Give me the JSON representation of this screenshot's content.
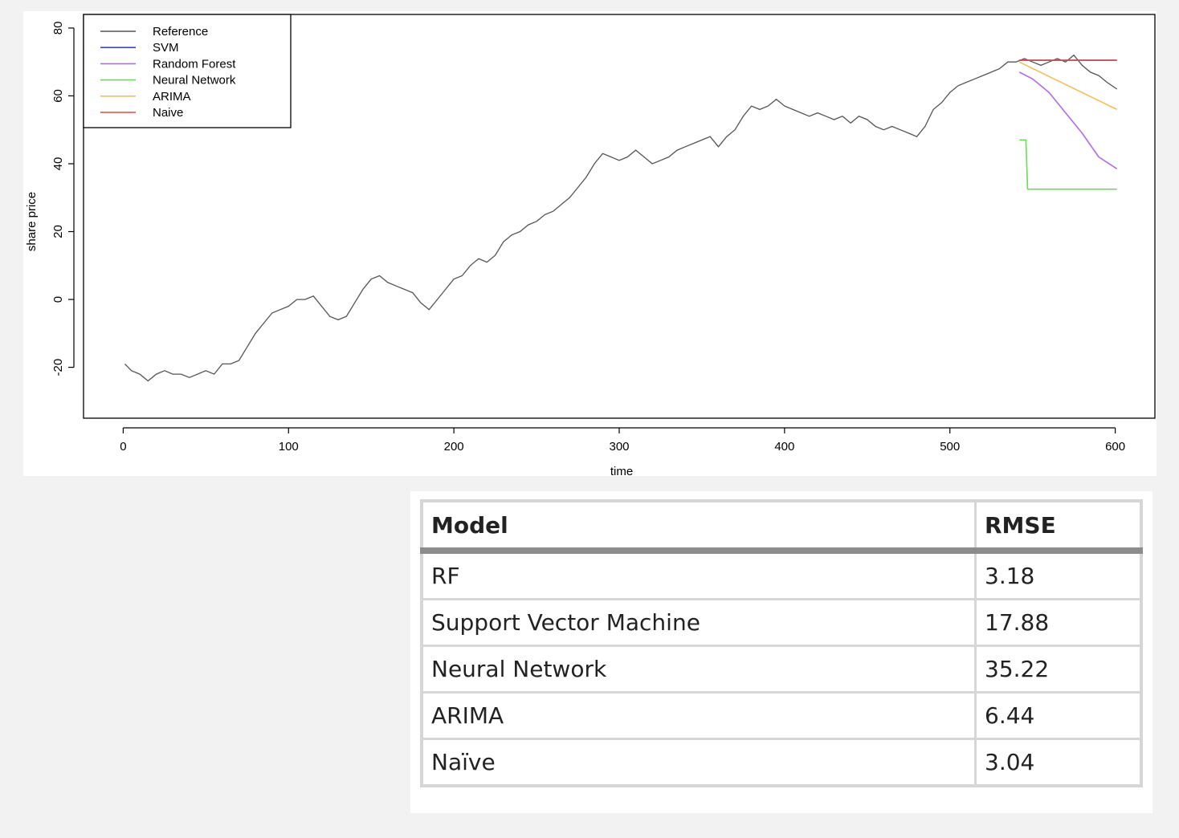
{
  "chart_data": {
    "type": "line",
    "title": "",
    "xlabel": "time",
    "ylabel": "share price",
    "xlim": [
      -24,
      624
    ],
    "ylim": [
      -35,
      84
    ],
    "x_ticks": [
      0,
      100,
      200,
      300,
      400,
      500,
      600
    ],
    "y_ticks": [
      -20,
      0,
      20,
      40,
      60,
      80
    ],
    "legend_position": "top-left",
    "grid": false,
    "series": [
      {
        "name": "Reference",
        "color": "#555555",
        "x": [
          1,
          5,
          10,
          15,
          20,
          25,
          30,
          35,
          40,
          45,
          50,
          55,
          60,
          65,
          70,
          75,
          80,
          85,
          90,
          95,
          100,
          105,
          110,
          115,
          120,
          125,
          130,
          135,
          140,
          145,
          150,
          155,
          160,
          165,
          170,
          175,
          180,
          185,
          190,
          195,
          200,
          205,
          210,
          215,
          220,
          225,
          230,
          235,
          240,
          245,
          250,
          255,
          260,
          265,
          270,
          275,
          280,
          285,
          290,
          295,
          300,
          305,
          310,
          315,
          320,
          325,
          330,
          335,
          340,
          345,
          350,
          355,
          360,
          365,
          370,
          375,
          380,
          385,
          390,
          395,
          400,
          405,
          410,
          415,
          420,
          425,
          430,
          435,
          440,
          445,
          450,
          455,
          460,
          465,
          470,
          475,
          480,
          485,
          490,
          495,
          500,
          505,
          510,
          515,
          520,
          525,
          530,
          535,
          540,
          545,
          550,
          555,
          560,
          565,
          570,
          575,
          580,
          585,
          590,
          595,
          601
        ],
        "values": [
          -19,
          -21,
          -22,
          -24,
          -22,
          -21,
          -22,
          -22,
          -23,
          -22,
          -21,
          -22,
          -19,
          -19,
          -18,
          -14,
          -10,
          -7,
          -4,
          -3,
          -2,
          0,
          0,
          1,
          -2,
          -5,
          -6,
          -5,
          -1,
          3,
          6,
          7,
          5,
          4,
          3,
          2,
          -1,
          -3,
          0,
          3,
          6,
          7,
          10,
          12,
          11,
          13,
          17,
          19,
          20,
          22,
          23,
          25,
          26,
          28,
          30,
          33,
          36,
          40,
          43,
          42,
          41,
          42,
          44,
          42,
          40,
          41,
          42,
          44,
          45,
          46,
          47,
          48,
          45,
          48,
          50,
          54,
          57,
          56,
          57,
          59,
          57,
          56,
          55,
          54,
          55,
          54,
          53,
          54,
          52,
          54,
          53,
          51,
          50,
          51,
          50,
          49,
          48,
          51,
          56,
          58,
          61,
          63,
          64,
          65,
          66,
          67,
          68,
          70,
          70,
          71,
          70,
          69,
          70,
          71,
          70,
          72,
          69,
          67,
          66,
          64,
          62
        ]
      },
      {
        "name": "SVM",
        "color": "#3f3fd6",
        "x": [
          542,
          601
        ],
        "values": [
          70.5,
          70.5
        ]
      },
      {
        "name": "Random Forest",
        "color": "#b36be6",
        "x": [
          542,
          550,
          560,
          570,
          580,
          590,
          601
        ],
        "values": [
          67,
          65,
          61,
          55,
          49,
          42,
          38.5
        ]
      },
      {
        "name": "Neural Network",
        "color": "#66dd55",
        "x": [
          542,
          546,
          547,
          601
        ],
        "values": [
          47,
          47,
          32.5,
          32.5
        ]
      },
      {
        "name": "ARIMA",
        "color": "#f2c05a",
        "x": [
          542,
          601
        ],
        "values": [
          70,
          56
        ]
      },
      {
        "name": "Naive",
        "color": "#e04a4a",
        "x": [
          542,
          601
        ],
        "values": [
          70.5,
          70.5
        ]
      }
    ]
  },
  "table": {
    "headers": [
      "Model",
      "RMSE"
    ],
    "rows": [
      [
        "RF",
        "3.18"
      ],
      [
        "Support Vector Machine",
        "17.88"
      ],
      [
        "Neural Network",
        "35.22"
      ],
      [
        "ARIMA",
        "6.44"
      ],
      [
        "Naïve",
        "3.04"
      ]
    ]
  }
}
